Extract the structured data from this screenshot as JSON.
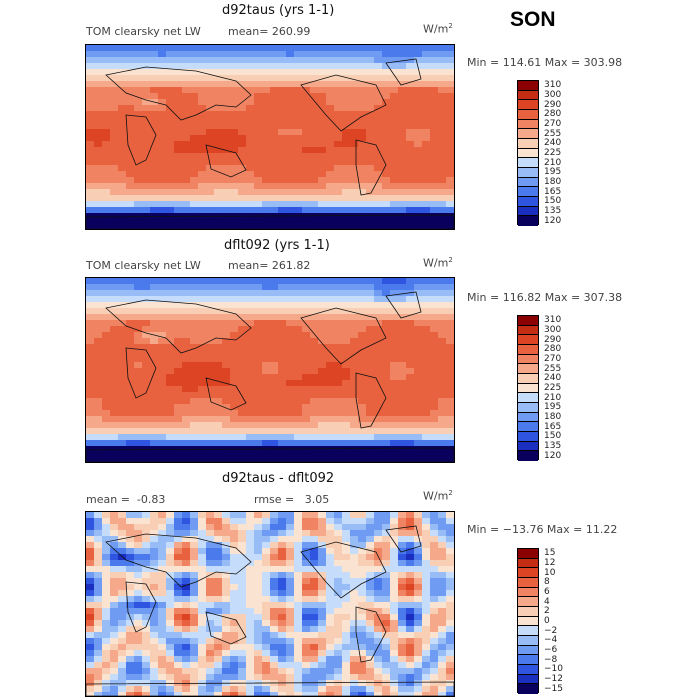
{
  "season": "SON",
  "colormap_abs": [
    "#08005c",
    "#1a2fbf",
    "#2f55e0",
    "#4b7aec",
    "#6f9bf2",
    "#98bcf6",
    "#c5dcfa",
    "#fbe3d2",
    "#f8cfb5",
    "#f5a98a",
    "#f08462",
    "#e8623f",
    "#dc4424",
    "#c42c14",
    "#8b0000"
  ],
  "colormap_diff": [
    "#08005c",
    "#1a2fbf",
    "#2f55e0",
    "#4b7aec",
    "#6f9bf2",
    "#98bcf6",
    "#c5dcfa",
    "#fbe3d2",
    "#f8cfb5",
    "#f5a98a",
    "#f08462",
    "#e8623f",
    "#dc4424",
    "#c42c14",
    "#8b0000"
  ],
  "panels": [
    {
      "title": "d92taus (yrs 1-1)",
      "left_label": "TOM clearsky net LW",
      "stat": "mean=",
      "stat_value": "260.99",
      "units": "W/m",
      "units_sup": "2",
      "minmax": "Min = 114.61 Max = 303.98",
      "levels": [
        "310",
        "300",
        "290",
        "280",
        "270",
        "255",
        "240",
        "225",
        "210",
        "195",
        "180",
        "165",
        "150",
        "135",
        "120"
      ],
      "field": "abs1"
    },
    {
      "title": "dflt092 (yrs 1-1)",
      "left_label": "TOM clearsky net LW",
      "stat": "mean=",
      "stat_value": "261.82",
      "units": "W/m",
      "units_sup": "2",
      "minmax": "Min = 116.82 Max = 307.38",
      "levels": [
        "310",
        "300",
        "290",
        "280",
        "270",
        "255",
        "240",
        "225",
        "210",
        "195",
        "180",
        "165",
        "150",
        "135",
        "120"
      ],
      "field": "abs2"
    },
    {
      "title": "d92taus - dflt092",
      "left_label": "mean =",
      "left_value": "-0.83",
      "stat": "rmse =",
      "stat_value": "3.05",
      "units": "W/m",
      "units_sup": "2",
      "minmax": "Min = −13.76 Max =  11.22",
      "levels": [
        "15",
        "12",
        "10",
        "8",
        "6",
        "4",
        "2",
        "0",
        "−2",
        "−4",
        "−6",
        "−8",
        "−10",
        "−12",
        "−15"
      ],
      "field": "diff"
    }
  ]
}
